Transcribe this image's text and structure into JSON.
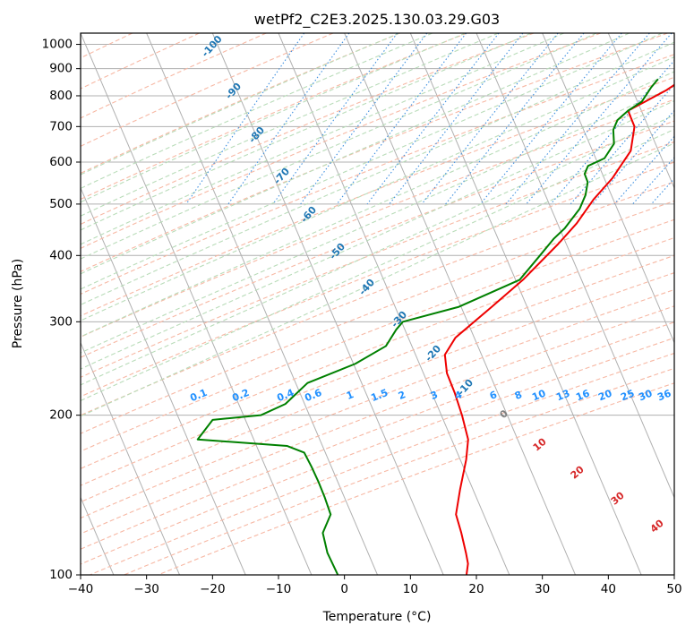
{
  "chart_data": {
    "type": "line",
    "subtype": "skew-t log-p diagram",
    "title": "wetPf2_C2E3.2025.130.03.29.G03",
    "xlabel": "Temperature (°C)",
    "ylabel": "Pressure (hPa)",
    "xlim": [
      -40,
      50
    ],
    "ylim": [
      1050,
      100
    ],
    "y_scale": "log",
    "grid": true,
    "x_ticks": [
      "−40",
      "−30",
      "−20",
      "−10",
      "0",
      "10",
      "20",
      "30",
      "40",
      "50"
    ],
    "y_ticks": [
      "100",
      "200",
      "300",
      "400",
      "500",
      "600",
      "700",
      "800",
      "900",
      "1000"
    ],
    "series": [
      {
        "color": "#ee0000",
        "points": [
          [
            19.3,
            860
          ],
          [
            17.5,
            820
          ],
          [
            15.0,
            780
          ],
          [
            13.0,
            750
          ],
          [
            15.0,
            700
          ],
          [
            16.0,
            630
          ],
          [
            15.0,
            560
          ],
          [
            13.5,
            510
          ],
          [
            12.5,
            460
          ],
          [
            11.0,
            420
          ],
          [
            8.0,
            360
          ],
          [
            5.0,
            320
          ],
          [
            1.5,
            280
          ],
          [
            1.0,
            260
          ],
          [
            2.5,
            240
          ],
          [
            5.0,
            220
          ],
          [
            7.5,
            200
          ],
          [
            10.0,
            180
          ],
          [
            11.0,
            165
          ],
          [
            12.0,
            145
          ],
          [
            13.0,
            130
          ],
          [
            15.0,
            120
          ],
          [
            17.0,
            110
          ],
          [
            18.0,
            105
          ],
          [
            18.5,
            100
          ]
        ]
      },
      {
        "color": "#008000",
        "points": [
          [
            15.5,
            860
          ],
          [
            15.0,
            830
          ],
          [
            14.5,
            780
          ],
          [
            13.0,
            750
          ],
          [
            12.0,
            720
          ],
          [
            12.0,
            690
          ],
          [
            13.0,
            650
          ],
          [
            12.5,
            610
          ],
          [
            10.5,
            590
          ],
          [
            10.5,
            570
          ],
          [
            11.5,
            550
          ],
          [
            12.0,
            520
          ],
          [
            12.0,
            490
          ],
          [
            11.0,
            450
          ],
          [
            10.0,
            430
          ],
          [
            9.0,
            400
          ],
          [
            7.5,
            360
          ],
          [
            0.0,
            320
          ],
          [
            -7.5,
            300
          ],
          [
            -8.0,
            290
          ],
          [
            -8.5,
            270
          ],
          [
            -12.0,
            250
          ],
          [
            -18.0,
            230
          ],
          [
            -20.0,
            210
          ],
          [
            -23.0,
            200
          ],
          [
            -30.0,
            196
          ],
          [
            -31.0,
            180
          ],
          [
            -17.0,
            175
          ],
          [
            -14.0,
            170
          ],
          [
            -12.0,
            160
          ],
          [
            -10.0,
            150
          ],
          [
            -8.0,
            140
          ],
          [
            -6.0,
            130
          ],
          [
            -6.0,
            120
          ],
          [
            -4.0,
            110
          ],
          [
            -1.0,
            100
          ]
        ]
      }
    ],
    "dry_adiabat_labels": [
      "-100",
      "-90",
      "-80",
      "-70",
      "-60",
      "-50",
      "-40",
      "-30",
      "-20",
      "-10"
    ],
    "moist_adiabat_labels": [
      "0",
      "10",
      "20",
      "30",
      "40"
    ],
    "mixing_ratio_labels": [
      "0.1",
      "0.2",
      "0.4",
      "0.6",
      "1",
      "1.5",
      "2",
      "3",
      "4",
      "6",
      "8",
      "10",
      "13",
      "16",
      "20",
      "25",
      "30",
      "36"
    ],
    "colors": {
      "isotherm": "#b0b0b0",
      "isobar": "#b0b0b0",
      "dry_adiabat": "#f7b8a4",
      "moist_adiabat": "#b9dcb9",
      "mixing_ratio": "#3d8fe0",
      "dry_label": "#1f77b4",
      "moist_label": "#d62728",
      "mixing_label": "#2090ff",
      "zero_label": "#808080"
    }
  }
}
